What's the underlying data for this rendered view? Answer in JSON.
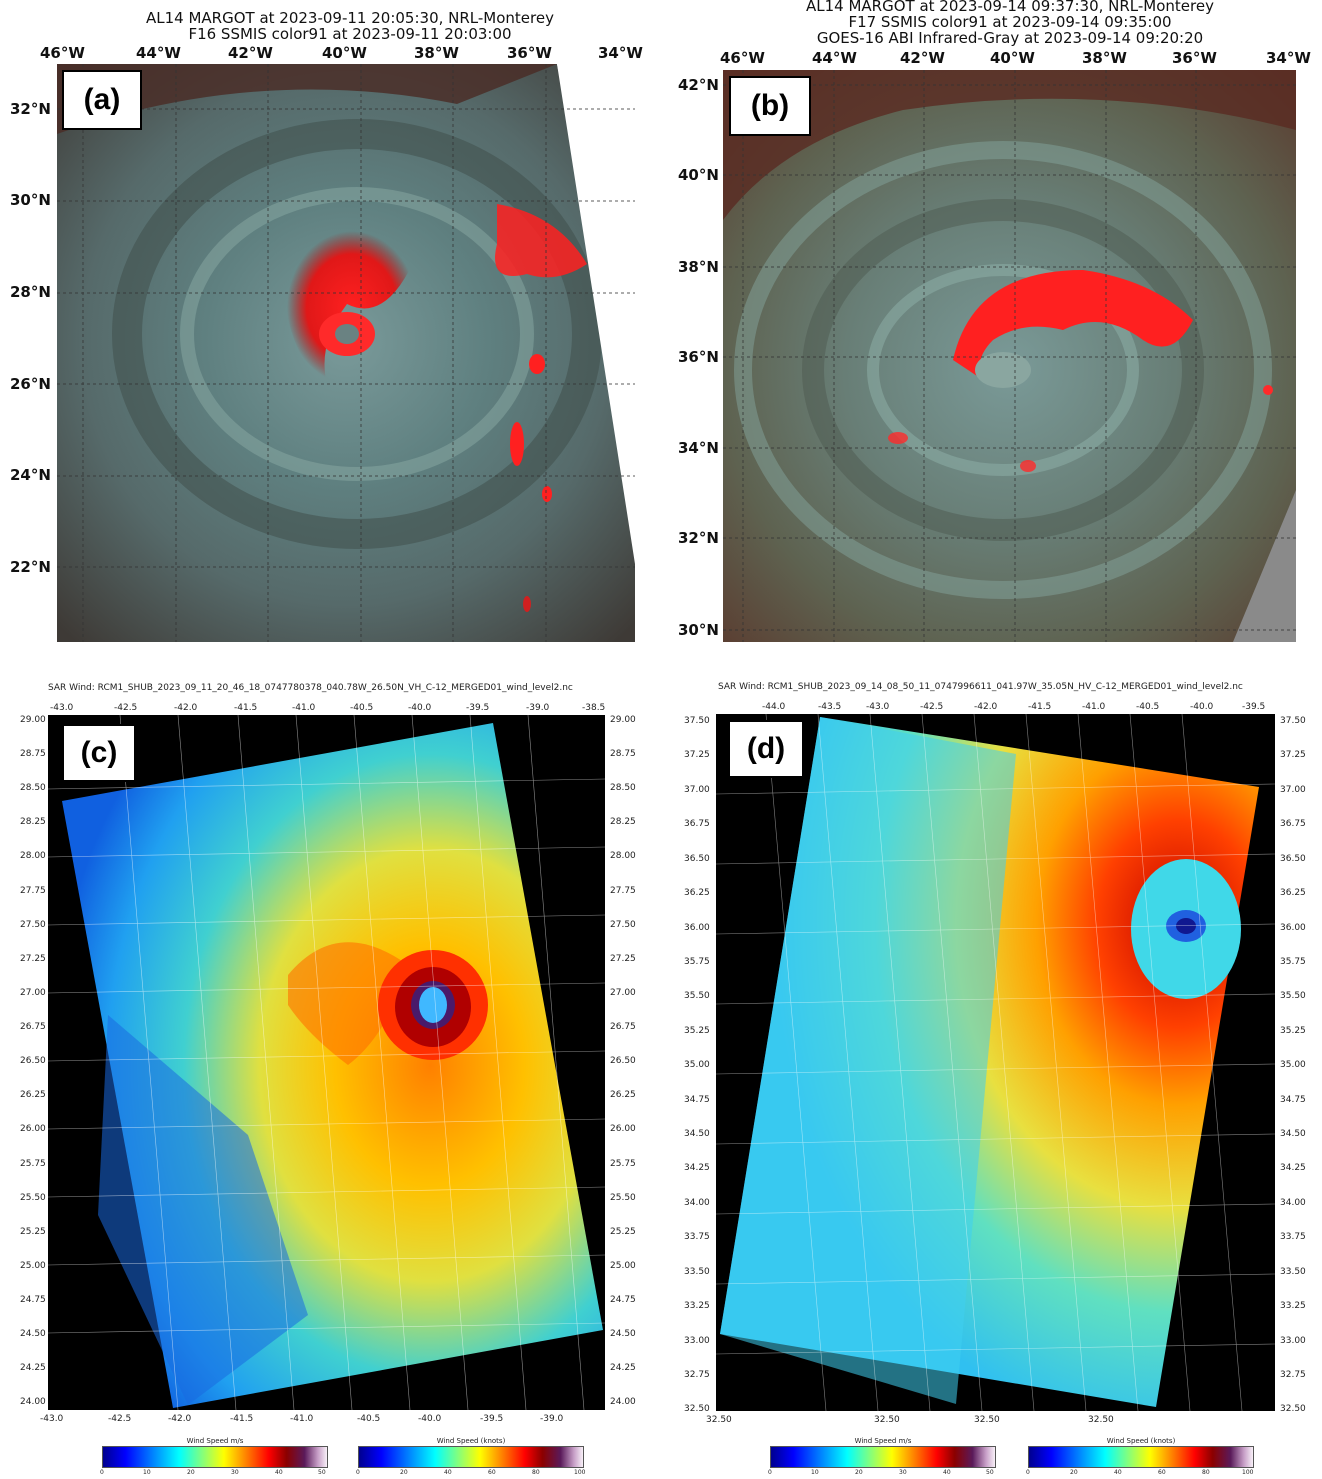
{
  "panel_a": {
    "title_lines": [
      "AL14 MARGOT at 2023-09-11 20:05:30, NRL-Monterey",
      "F16 SSMIS color91 at 2023-09-11 20:03:00"
    ],
    "label": "(a)",
    "lon_ticks": [
      "46°W",
      "44°W",
      "42°W",
      "40°W",
      "38°W",
      "36°W",
      "34°W"
    ],
    "lat_ticks": [
      "32°N",
      "30°N",
      "28°N",
      "26°N",
      "24°N",
      "22°N"
    ]
  },
  "panel_b": {
    "title_lines": [
      "AL14 MARGOT at 2023-09-14 09:37:30, NRL-Monterey",
      "F17 SSMIS color91 at 2023-09-14 09:35:00",
      "GOES-16 ABI Infrared-Gray at 2023-09-14 09:20:20"
    ],
    "label": "(b)",
    "lon_ticks": [
      "46°W",
      "44°W",
      "42°W",
      "40°W",
      "38°W",
      "36°W",
      "34°W"
    ],
    "lat_ticks": [
      "42°N",
      "40°N",
      "38°N",
      "36°N",
      "34°N",
      "32°N",
      "30°N"
    ]
  },
  "panel_c": {
    "title": "SAR Wind: RCM1_SHUB_2023_09_11_20_46_18_0747780378_040.78W_26.50N_VH_C-12_MERGED01_wind_level2.nc",
    "label": "(c)",
    "top_ticks": [
      "-43.0",
      "-42.5",
      "-42.0",
      "-41.5",
      "-41.0",
      "-40.5",
      "-40.0",
      "-39.5",
      "-39.0",
      "-38.5"
    ],
    "bottom_ticks": [
      "-43.0",
      "-42.5",
      "-42.0",
      "-41.5",
      "-41.0",
      "-40.5",
      "-40.0",
      "-39.5",
      "-39.0"
    ],
    "lat_ticks": [
      "29.00",
      "28.75",
      "28.50",
      "28.25",
      "28.00",
      "27.75",
      "27.50",
      "27.25",
      "27.00",
      "26.75",
      "26.50",
      "26.25",
      "26.00",
      "25.75",
      "25.50",
      "25.25",
      "25.00",
      "24.75",
      "24.50",
      "24.25",
      "24.00"
    ],
    "colorbar_ms": {
      "caption": "Wind Speed m/s",
      "ticks": [
        "0",
        "10",
        "20",
        "30",
        "40",
        "50"
      ]
    },
    "colorbar_kt": {
      "caption": "Wind Speed (knots)",
      "ticks": [
        "0",
        "20",
        "40",
        "60",
        "80",
        "100"
      ]
    }
  },
  "panel_d": {
    "title": "SAR Wind: RCM1_SHUB_2023_09_14_08_50_11_0747996611_041.97W_35.05N_HV_C-12_MERGED01_wind_level2.nc",
    "label": "(d)",
    "top_ticks": [
      "-44.0",
      "-43.5",
      "-43.0",
      "-42.5",
      "-42.0",
      "-41.5",
      "-41.0",
      "-40.5",
      "-40.0",
      "-39.5"
    ],
    "bottom_ticks": [
      "32.50",
      "32.50",
      "32.50",
      "32.50"
    ],
    "lat_ticks": [
      "37.50",
      "37.25",
      "37.00",
      "36.75",
      "36.50",
      "36.25",
      "36.00",
      "35.75",
      "35.50",
      "35.25",
      "35.00",
      "34.75",
      "34.50",
      "34.25",
      "34.00",
      "33.75",
      "33.50",
      "33.25",
      "33.00",
      "32.75",
      "32.50"
    ],
    "colorbar_ms": {
      "caption": "Wind Speed m/s",
      "ticks": [
        "0",
        "10",
        "20",
        "30",
        "40",
        "50"
      ]
    },
    "colorbar_kt": {
      "caption": "Wind Speed (knots)",
      "ticks": [
        "0",
        "20",
        "40",
        "60",
        "80",
        "100"
      ]
    }
  }
}
